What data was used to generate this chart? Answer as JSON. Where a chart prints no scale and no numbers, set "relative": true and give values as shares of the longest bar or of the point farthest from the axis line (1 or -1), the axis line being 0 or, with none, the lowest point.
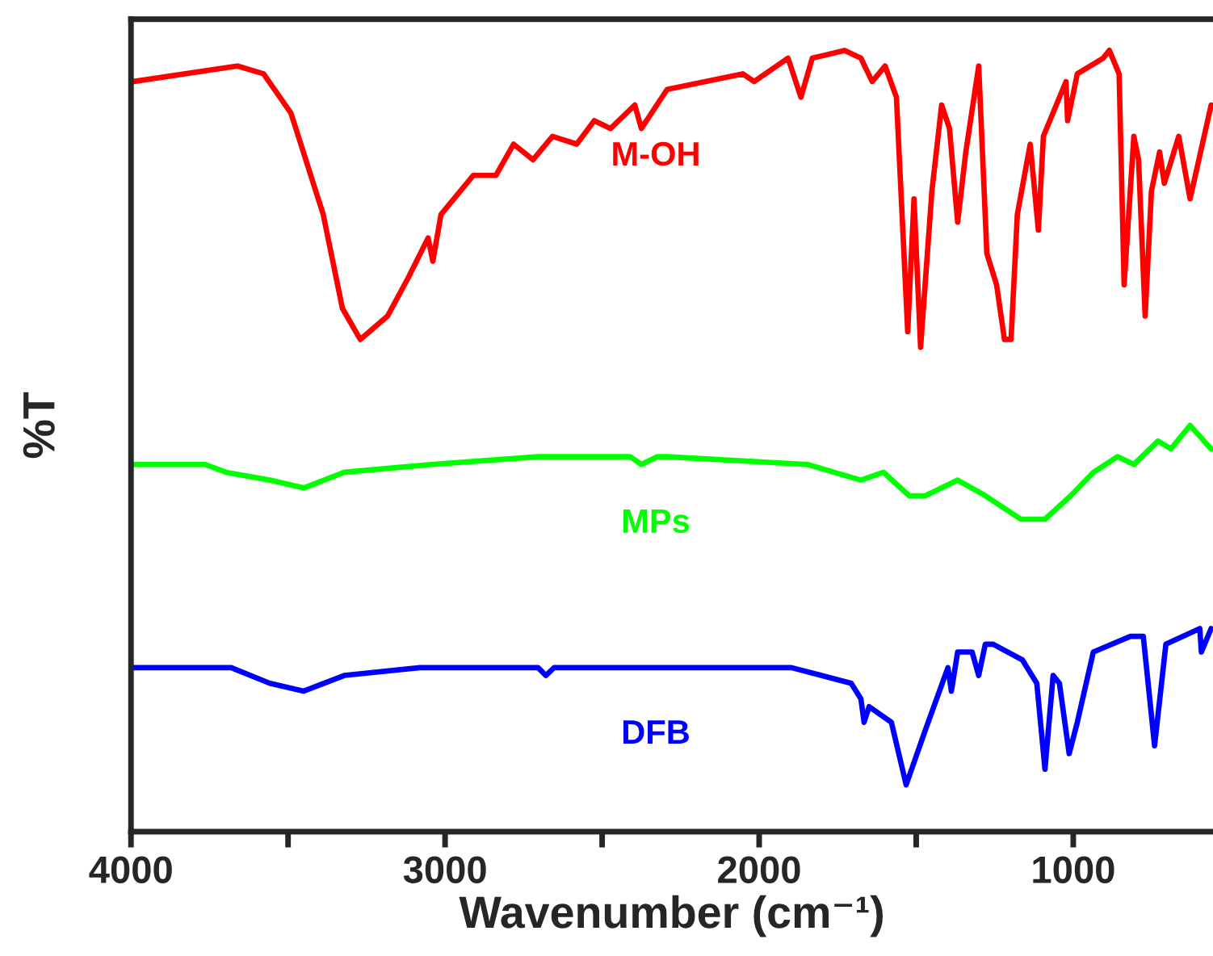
{
  "chart_data": {
    "type": "line",
    "relative": true,
    "xlabel": "Wavenumber (cm⁻¹)",
    "ylabel": "%T",
    "xlim": [
      4000,
      555
    ],
    "xticks": [
      4000,
      {
        "value": 3500,
        "label": null
      },
      3000,
      {
        "value": 2500,
        "label": null
      },
      2000,
      {
        "value": 1500,
        "label": null
      },
      1000
    ],
    "tick_labels": "x",
    "grid": false,
    "legend": false,
    "marker": "none",
    "line_style": "solid",
    "series": [
      {
        "name": "M-OH",
        "color": "#ff0000",
        "x": [
          3995,
          3661,
          3578,
          3491,
          3388,
          3327,
          3270,
          3183,
          3116,
          3054,
          3039,
          3013,
          2910,
          2838,
          2782,
          2720,
          2658,
          2581,
          2525,
          2473,
          2396,
          2375,
          2293,
          2052,
          2016,
          1908,
          1867,
          1831,
          1728,
          1676,
          1640,
          1599,
          1563,
          1527,
          1507,
          1486,
          1450,
          1419,
          1394,
          1368,
          1342,
          1301,
          1275,
          1244,
          1219,
          1198,
          1178,
          1137,
          1111,
          1095,
          1023,
          1018,
          987,
          905,
          885,
          854,
          838,
          807,
          792,
          771,
          751,
          725,
          710,
          664,
          628,
          561
        ],
        "values": [
          0.96,
          0.98,
          0.97,
          0.92,
          0.79,
          0.67,
          0.63,
          0.66,
          0.71,
          0.76,
          0.73,
          0.79,
          0.84,
          0.84,
          0.88,
          0.86,
          0.89,
          0.88,
          0.91,
          0.9,
          0.93,
          0.9,
          0.95,
          0.97,
          0.96,
          0.99,
          0.94,
          0.99,
          1.0,
          0.99,
          0.96,
          0.98,
          0.94,
          0.64,
          0.81,
          0.62,
          0.82,
          0.93,
          0.9,
          0.78,
          0.87,
          0.98,
          0.74,
          0.7,
          0.63,
          0.63,
          0.79,
          0.88,
          0.77,
          0.89,
          0.96,
          0.91,
          0.97,
          0.99,
          1.0,
          0.97,
          0.7,
          0.89,
          0.86,
          0.66,
          0.82,
          0.87,
          0.83,
          0.89,
          0.81,
          0.93
        ]
      },
      {
        "name": "MPs",
        "color": "#00ff00",
        "x": [
          3995,
          3764,
          3697,
          3558,
          3450,
          3321,
          3044,
          2704,
          2411,
          2375,
          2324,
          2293,
          1846,
          1676,
          1604,
          1522,
          1471,
          1368,
          1280,
          1167,
          1137,
          1090,
          1008,
          936,
          859,
          807,
          730,
          689,
          628,
          561
        ],
        "values": [
          0.47,
          0.47,
          0.46,
          0.45,
          0.44,
          0.46,
          0.47,
          0.48,
          0.48,
          0.47,
          0.48,
          0.48,
          0.47,
          0.45,
          0.46,
          0.43,
          0.43,
          0.45,
          0.43,
          0.4,
          0.4,
          0.4,
          0.43,
          0.46,
          0.48,
          0.47,
          0.5,
          0.49,
          0.52,
          0.49
        ]
      },
      {
        "name": "DFB",
        "color": "#0000ff",
        "x": [
          3995,
          3681,
          3558,
          3450,
          3321,
          3080,
          2704,
          2679,
          2653,
          2293,
          1897,
          1707,
          1676,
          1666,
          1650,
          1579,
          1532,
          1471,
          1399,
          1388,
          1368,
          1322,
          1301,
          1280,
          1255,
          1162,
          1116,
          1090,
          1064,
          1044,
          1013,
          987,
          936,
          818,
          777,
          741,
          705,
          597,
          592,
          561
        ],
        "values": [
          0.21,
          0.21,
          0.19,
          0.18,
          0.2,
          0.21,
          0.21,
          0.2,
          0.21,
          0.21,
          0.21,
          0.19,
          0.17,
          0.14,
          0.16,
          0.14,
          0.06,
          0.13,
          0.21,
          0.18,
          0.23,
          0.23,
          0.2,
          0.24,
          0.24,
          0.22,
          0.19,
          0.08,
          0.2,
          0.19,
          0.1,
          0.14,
          0.23,
          0.25,
          0.25,
          0.11,
          0.24,
          0.26,
          0.23,
          0.26
        ]
      }
    ]
  }
}
